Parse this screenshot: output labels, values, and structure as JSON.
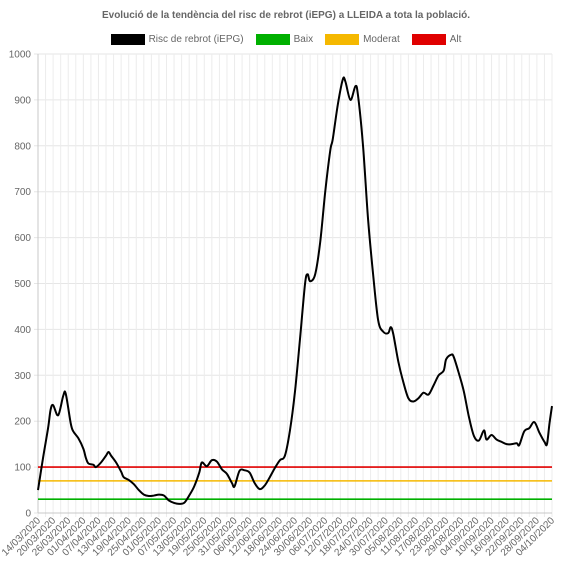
{
  "chart_data": {
    "type": "line",
    "title": "Evolució de la tendència del risc de rebrot (iEPG) a LLEIDA a tota la població.",
    "xlabel": "",
    "ylabel": "",
    "ylim": [
      0,
      1000
    ],
    "yticks": [
      0,
      100,
      200,
      300,
      400,
      500,
      600,
      700,
      800,
      900,
      1000
    ],
    "grid": true,
    "legend_position": "top",
    "x_range": [
      "14/03/2020",
      "04/10/2020"
    ],
    "xtick_labels": [
      "14/03/2020",
      "20/03/2020",
      "26/03/2020",
      "01/04/2020",
      "07/04/2020",
      "13/04/2020",
      "19/04/2020",
      "25/04/2020",
      "01/05/2020",
      "07/05/2020",
      "13/05/2020",
      "19/05/2020",
      "25/05/2020",
      "31/05/2020",
      "06/06/2020",
      "12/06/2020",
      "18/06/2020",
      "24/06/2020",
      "30/06/2020",
      "06/07/2020",
      "12/07/2020",
      "18/07/2020",
      "24/07/2020",
      "30/07/2020",
      "05/08/2020",
      "11/08/2020",
      "17/08/2020",
      "23/08/2020",
      "29/08/2020",
      "04/09/2020",
      "10/09/2020",
      "16/09/2020",
      "22/09/2020",
      "28/09/2020",
      "04/10/2020"
    ],
    "series": [
      {
        "name": "Risc de rebrot (iEPG)",
        "color": "#000000",
        "points": [
          [
            "14/03/2020",
            50
          ],
          [
            "16/03/2020",
            120
          ],
          [
            "18/03/2020",
            185
          ],
          [
            "19/03/2020",
            225
          ],
          [
            "20/03/2020",
            235
          ],
          [
            "22/03/2020",
            213
          ],
          [
            "24/03/2020",
            255
          ],
          [
            "25/03/2020",
            260
          ],
          [
            "27/03/2020",
            195
          ],
          [
            "28/03/2020",
            178
          ],
          [
            "30/03/2020",
            163
          ],
          [
            "01/04/2020",
            140
          ],
          [
            "02/04/2020",
            120
          ],
          [
            "03/04/2020",
            108
          ],
          [
            "05/04/2020",
            105
          ],
          [
            "06/04/2020",
            100
          ],
          [
            "08/04/2020",
            110
          ],
          [
            "10/04/2020",
            125
          ],
          [
            "11/04/2020",
            133
          ],
          [
            "12/04/2020",
            125
          ],
          [
            "14/04/2020",
            110
          ],
          [
            "16/04/2020",
            90
          ],
          [
            "17/04/2020",
            78
          ],
          [
            "19/04/2020",
            72
          ],
          [
            "21/04/2020",
            63
          ],
          [
            "23/04/2020",
            50
          ],
          [
            "25/04/2020",
            40
          ],
          [
            "27/04/2020",
            37
          ],
          [
            "29/04/2020",
            38
          ],
          [
            "01/05/2020",
            40
          ],
          [
            "03/05/2020",
            38
          ],
          [
            "05/05/2020",
            27
          ],
          [
            "07/05/2020",
            22
          ],
          [
            "09/05/2020",
            20
          ],
          [
            "11/05/2020",
            22
          ],
          [
            "13/05/2020",
            38
          ],
          [
            "15/05/2020",
            58
          ],
          [
            "17/05/2020",
            88
          ],
          [
            "18/05/2020",
            110
          ],
          [
            "20/05/2020",
            102
          ],
          [
            "22/05/2020",
            115
          ],
          [
            "24/05/2020",
            112
          ],
          [
            "26/05/2020",
            95
          ],
          [
            "28/05/2020",
            85
          ],
          [
            "30/05/2020",
            65
          ],
          [
            "31/05/2020",
            58
          ],
          [
            "02/06/2020",
            92
          ],
          [
            "04/06/2020",
            93
          ],
          [
            "06/06/2020",
            88
          ],
          [
            "08/06/2020",
            65
          ],
          [
            "10/06/2020",
            52
          ],
          [
            "12/06/2020",
            60
          ],
          [
            "14/06/2020",
            78
          ],
          [
            "16/06/2020",
            98
          ],
          [
            "18/06/2020",
            115
          ],
          [
            "20/06/2020",
            125
          ],
          [
            "22/06/2020",
            180
          ],
          [
            "24/06/2020",
            265
          ],
          [
            "26/06/2020",
            380
          ],
          [
            "28/06/2020",
            500
          ],
          [
            "29/06/2020",
            520
          ],
          [
            "30/06/2020",
            505
          ],
          [
            "02/07/2020",
            520
          ],
          [
            "04/07/2020",
            590
          ],
          [
            "06/07/2020",
            700
          ],
          [
            "08/07/2020",
            790
          ],
          [
            "09/07/2020",
            815
          ],
          [
            "11/07/2020",
            890
          ],
          [
            "13/07/2020",
            945
          ],
          [
            "14/07/2020",
            940
          ],
          [
            "16/07/2020",
            900
          ],
          [
            "18/07/2020",
            930
          ],
          [
            "19/07/2020",
            910
          ],
          [
            "21/07/2020",
            800
          ],
          [
            "23/07/2020",
            640
          ],
          [
            "25/07/2020",
            520
          ],
          [
            "27/07/2020",
            420
          ],
          [
            "29/07/2020",
            395
          ],
          [
            "31/07/2020",
            392
          ],
          [
            "01/08/2020",
            405
          ],
          [
            "02/08/2020",
            390
          ],
          [
            "04/08/2020",
            330
          ],
          [
            "06/08/2020",
            285
          ],
          [
            "08/08/2020",
            250
          ],
          [
            "10/08/2020",
            243
          ],
          [
            "12/08/2020",
            250
          ],
          [
            "14/08/2020",
            262
          ],
          [
            "16/08/2020",
            258
          ],
          [
            "18/08/2020",
            278
          ],
          [
            "20/08/2020",
            300
          ],
          [
            "22/08/2020",
            310
          ],
          [
            "23/08/2020",
            335
          ],
          [
            "25/08/2020",
            345
          ],
          [
            "26/08/2020",
            340
          ],
          [
            "28/08/2020",
            305
          ],
          [
            "30/08/2020",
            265
          ],
          [
            "01/09/2020",
            210
          ],
          [
            "03/09/2020",
            168
          ],
          [
            "05/09/2020",
            158
          ],
          [
            "07/09/2020",
            180
          ],
          [
            "08/09/2020",
            160
          ],
          [
            "10/09/2020",
            170
          ],
          [
            "12/09/2020",
            160
          ],
          [
            "14/09/2020",
            155
          ],
          [
            "16/09/2020",
            150
          ],
          [
            "18/09/2020",
            150
          ],
          [
            "20/09/2020",
            152
          ],
          [
            "21/09/2020",
            148
          ],
          [
            "23/09/2020",
            178
          ],
          [
            "25/09/2020",
            185
          ],
          [
            "27/09/2020",
            198
          ],
          [
            "29/09/2020",
            175
          ],
          [
            "01/10/2020",
            155
          ],
          [
            "02/10/2020",
            150
          ],
          [
            "03/10/2020",
            195
          ],
          [
            "04/10/2020",
            233
          ]
        ]
      },
      {
        "name": "Baix",
        "color": "#00b000",
        "constant": 30
      },
      {
        "name": "Moderat",
        "color": "#f5b800",
        "constant": 70
      },
      {
        "name": "Alt",
        "color": "#e00000",
        "constant": 100
      }
    ]
  }
}
